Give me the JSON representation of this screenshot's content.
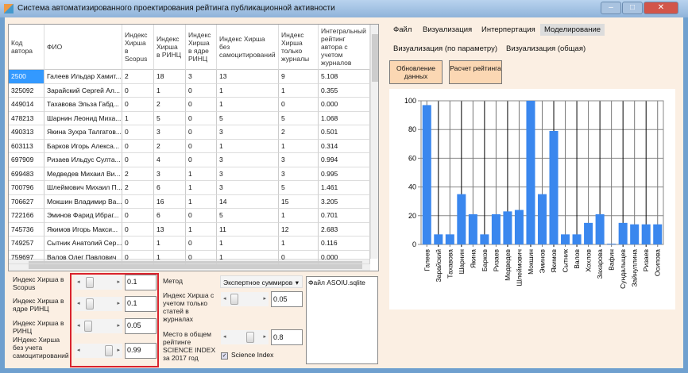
{
  "window": {
    "title": "Система автоматизированного проектирования рейтинга публикационной активности"
  },
  "grid": {
    "columns": [
      "Код автора",
      "ФИО",
      "Индекс Хирша в Scopus",
      "Индекс Хирша в РИНЦ",
      "Индекс Хирша в ядре РИНЦ",
      "Индекс Хирша без самоцитирований",
      "Индекс Хирша только журналы",
      "Интегральный рейтинг автора с учетом журналов"
    ],
    "rows": [
      [
        "2500",
        "Галеев Ильдар Хамит...",
        "2",
        "18",
        "3",
        "13",
        "9",
        "5.108"
      ],
      [
        "325092",
        "Зарайский Сергей Ал...",
        "0",
        "1",
        "0",
        "1",
        "1",
        "0.355"
      ],
      [
        "449014",
        "Тахавова Эльза Габд...",
        "0",
        "2",
        "0",
        "1",
        "0",
        "0.000"
      ],
      [
        "478213",
        "Шарнин Леонид Миха...",
        "1",
        "5",
        "0",
        "5",
        "5",
        "1.068"
      ],
      [
        "490313",
        "Якина Зухра Талгатов...",
        "0",
        "3",
        "0",
        "3",
        "2",
        "0.501"
      ],
      [
        "603113",
        "Барков Игорь Алекса...",
        "0",
        "2",
        "0",
        "1",
        "1",
        "0.314"
      ],
      [
        "697909",
        "Ризаев Ильдус Султа...",
        "0",
        "4",
        "0",
        "3",
        "3",
        "0.994"
      ],
      [
        "699483",
        "Медведев Михаил Ви...",
        "2",
        "3",
        "1",
        "3",
        "3",
        "0.995"
      ],
      [
        "700796",
        "Шлеймович Михаил П...",
        "2",
        "6",
        "1",
        "3",
        "5",
        "1.461"
      ],
      [
        "706627",
        "Мокшин Владимир Ва...",
        "0",
        "16",
        "1",
        "14",
        "15",
        "3.205"
      ],
      [
        "722166",
        "Эминов Фарид Ибраг...",
        "0",
        "6",
        "0",
        "5",
        "1",
        "0.701"
      ],
      [
        "745736",
        "Якимов Игорь Макси...",
        "0",
        "13",
        "1",
        "11",
        "12",
        "2.683"
      ],
      [
        "749257",
        "Сытник Анатолий Сер...",
        "0",
        "1",
        "0",
        "1",
        "1",
        "0.116"
      ],
      [
        "759697",
        "Валов Олег Павлович",
        "0",
        "1",
        "0",
        "1",
        "0",
        "0.000"
      ]
    ]
  },
  "weights": [
    {
      "label": "Индекс Хирша в Scopus",
      "value": "0.1",
      "position": 0.15
    },
    {
      "label": "Индекс Хирша в ядре РИНЦ",
      "value": "0.1",
      "position": 0.15
    },
    {
      "label": "Индекс Хирша в РИНЦ",
      "value": "0.05",
      "position": 0.1
    },
    {
      "label": "ИНдекс Хирша без учета самоцитирований",
      "value": "0.99",
      "position": 0.75
    }
  ],
  "method": {
    "label": "Метод",
    "selected": "Экспертное суммиров"
  },
  "journals": {
    "label": "Индекс Хирша с учетом только статей в журналах",
    "value": "0.05",
    "position": 0.1
  },
  "science": {
    "label": "Место в общем рейтинге SCIENCE INDEX за 2017 год",
    "value": "0.8",
    "position": 0.6,
    "checkbox_label": "Science Index",
    "checked": true
  },
  "log": {
    "text": "Файл ASOIU.sqlite"
  },
  "menu": [
    "Файл",
    "Визуализация",
    "Интерпертация",
    "Моделирование"
  ],
  "submenu": [
    "Визуализация (по параметру)",
    "Визуализация (общая)"
  ],
  "buttons": [
    "Обновление данных",
    "Расчет рейтинга"
  ],
  "chart_data": {
    "type": "bar",
    "categories": [
      "Галеев",
      "Зарайский",
      "Тахавова",
      "Шарнин",
      "Якина",
      "Барков",
      "Ризаев",
      "Медведев",
      "Шлеймович",
      "Мокшин",
      "Эминов",
      "Якимов",
      "Сытник",
      "Валов",
      "Хохлов",
      "Захарова",
      "Вафин",
      "Сундалыцев",
      "Зайнуллина",
      "Ризаев",
      "Осипова"
    ],
    "values": [
      97,
      7,
      7,
      35,
      21,
      7,
      21,
      23,
      24,
      100,
      35,
      79,
      7,
      7,
      15,
      21,
      0.5,
      15,
      14,
      14,
      14
    ],
    "ylim": [
      0,
      100
    ],
    "yticks": [
      "0",
      "20",
      "40",
      "60",
      "80",
      "100"
    ],
    "grid": true,
    "color": "#3a87ee"
  }
}
